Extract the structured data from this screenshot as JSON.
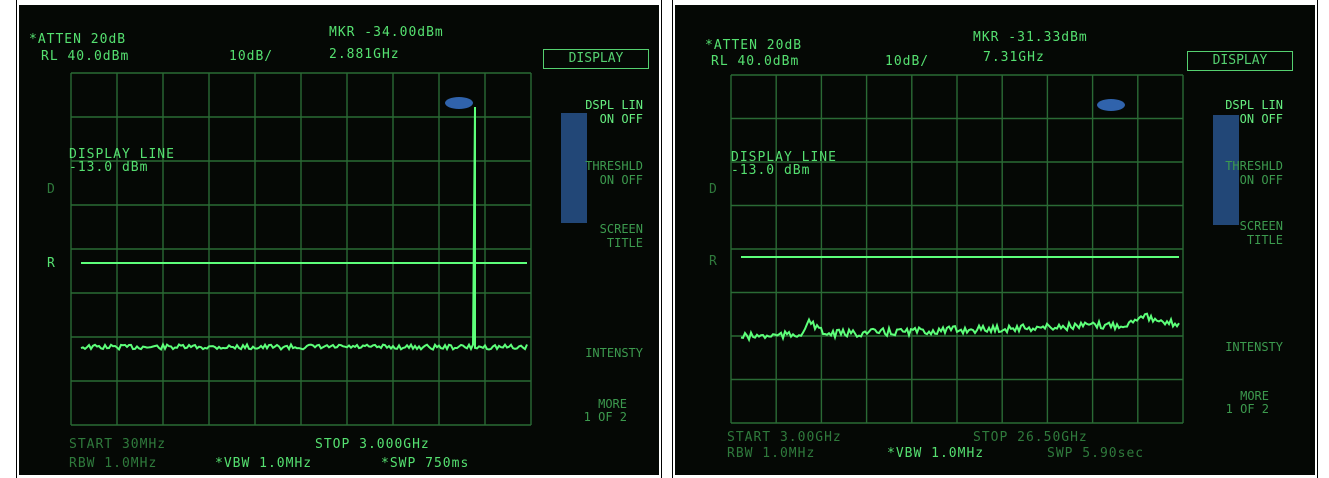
{
  "panels": [
    {
      "atten": "*ATTEN 20dB",
      "ref_level": "RL 40.0dBm",
      "scale": "10dB/",
      "marker_amp": "MKR -34.00dBm",
      "marker_freq": "2.881GHz",
      "display_line_label": "DISPLAY LINE",
      "display_line_value": "-13.0 dBm",
      "marker_d": "D",
      "marker_r": "R",
      "softkeys": {
        "display": "DISPLAY",
        "dspl_lin": "DSPL LIN",
        "dspl_on_off": "ON OFF",
        "threshld": "THRESHLD",
        "threshld_on_off": "ON OFF",
        "screen": "SCREEN",
        "title": "TITLE",
        "intensity": "INTENSTY",
        "more": "MORE",
        "more_of": "1 OF 2"
      },
      "start": "START 30MHz",
      "stop": "STOP 3.000GHz",
      "rbw": "RBW 1.0MHz",
      "vbw": "*VBW 1.0MHz",
      "swp": "*SWP 750ms"
    },
    {
      "atten": "*ATTEN 20dB",
      "ref_level": "RL 40.0dBm",
      "scale": "10dB/",
      "marker_amp": "MKR -31.33dBm",
      "marker_freq": "7.31GHz",
      "display_line_label": "DISPLAY LINE",
      "display_line_value": "-13.0 dBm",
      "marker_d": "D",
      "marker_r": "R",
      "softkeys": {
        "display": "DISPLAY",
        "dspl_lin": "DSPL LIN",
        "dspl_on_off": "ON OFF",
        "threshld": "THRESHLD",
        "threshld_on_off": "ON OFF",
        "screen": "SCREEN",
        "title": "TITLE",
        "intensity": "INTENSTY",
        "more": "MORE",
        "more_of": "1 OF 2"
      },
      "start": "START 3.00GHz",
      "stop": "STOP 26.50GHz",
      "rbw": "RBW 1.0MHz",
      "vbw": "*VBW 1.0MHz",
      "swp": "SWP 5.90sec"
    }
  ],
  "colors": {
    "trace": "#5dff7a",
    "grid": "#2a6a35",
    "screen": "#050805",
    "glare": "#3b7bd6"
  }
}
